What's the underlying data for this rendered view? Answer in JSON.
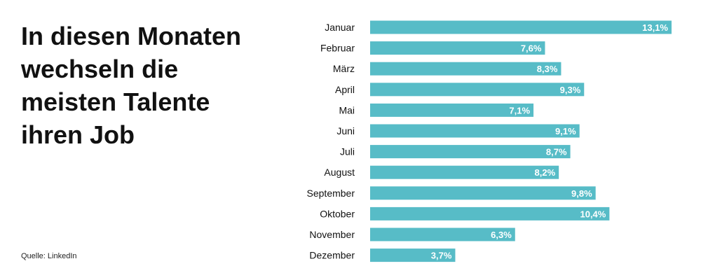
{
  "title": "In diesen Monaten wechseln die meisten Talente ihren Job",
  "source": "Quelle: LinkedIn",
  "colors": {
    "bar": "#57bcc7",
    "bar_label": "#ffffff",
    "category_label": "#111111"
  },
  "chart_data": {
    "type": "bar",
    "orientation": "horizontal",
    "title": "In diesen Monaten wechseln die meisten Talente ihren Job",
    "categories": [
      "Januar",
      "Februar",
      "März",
      "April",
      "Mai",
      "Juni",
      "Juli",
      "August",
      "September",
      "Oktober",
      "November",
      "Dezember"
    ],
    "values": [
      13.1,
      7.6,
      8.3,
      9.3,
      7.1,
      9.1,
      8.7,
      8.2,
      9.8,
      10.4,
      6.3,
      3.7
    ],
    "data_labels": [
      "13,1%",
      "7,6%",
      "8,3%",
      "9,3%",
      "7,1%",
      "9,1%",
      "8,7%",
      "8,2%",
      "9,8%",
      "10,4%",
      "6,3%",
      "3,7%"
    ],
    "xlim": [
      0,
      13.1
    ],
    "grid": false,
    "legend": "none"
  }
}
